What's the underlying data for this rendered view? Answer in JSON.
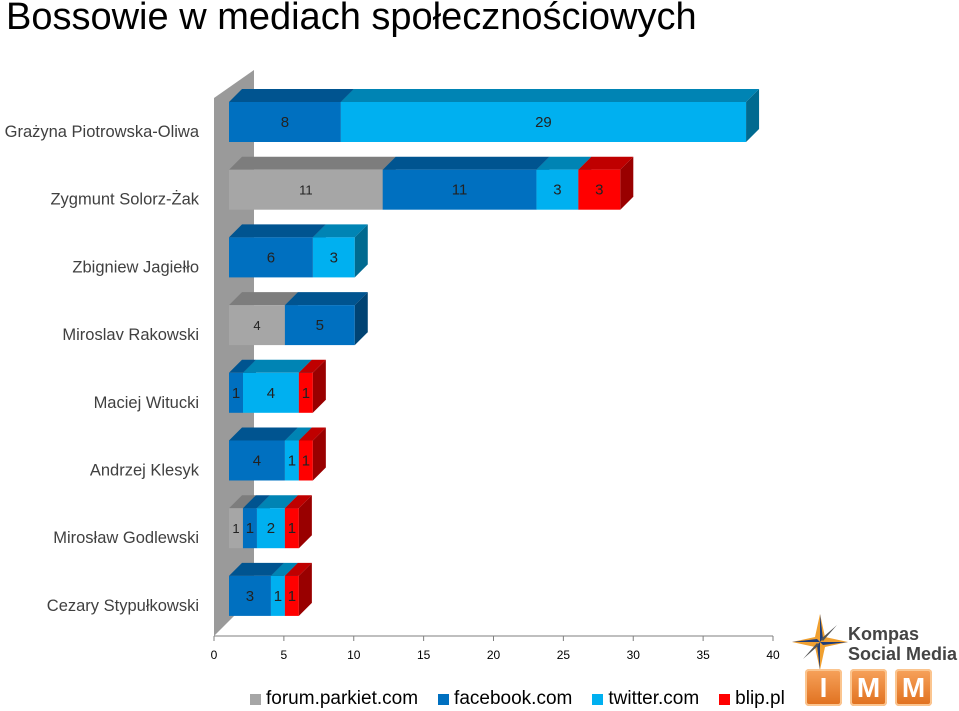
{
  "title": "Bossowie w mediach społecznościowych",
  "chart_data": {
    "type": "bar",
    "orientation": "horizontal",
    "stacked": true,
    "three_d": true,
    "title": "Bossowie w mediach społecznościowych",
    "categories": [
      "Grażyna Piotrowska-Oliwa",
      "Zygmunt Solorz-Żak",
      "Zbigniew Jagiełło",
      "Miroslav Rakowski",
      "Maciej Witucki",
      "Andrzej Klesyk",
      "Mirosław Godlewski",
      "Cezary Stypułkowski"
    ],
    "series": [
      {
        "name": "forum.parkiet.com",
        "color": "#A6A6A6",
        "values": [
          0,
          11,
          0,
          4,
          0,
          0,
          1,
          0
        ]
      },
      {
        "name": "facebook.com",
        "color": "#0070C0",
        "values": [
          8,
          11,
          6,
          5,
          1,
          4,
          1,
          3
        ]
      },
      {
        "name": "twitter.com",
        "color": "#00B0F0",
        "values": [
          29,
          3,
          3,
          0,
          4,
          1,
          2,
          1
        ]
      },
      {
        "name": "blip.pl",
        "color": "#FF0000",
        "values": [
          0,
          3,
          0,
          0,
          1,
          1,
          1,
          1
        ]
      }
    ],
    "data_labels": [
      [
        "",
        "8",
        "29",
        ""
      ],
      [
        "11",
        "11",
        "3",
        "3"
      ],
      [
        "",
        "6",
        "3",
        ""
      ],
      [
        "4",
        "5",
        "",
        ""
      ],
      [
        "",
        "1",
        "4",
        "1"
      ],
      [
        "",
        "4",
        "1",
        "1"
      ],
      [
        "1",
        "1",
        "2",
        "1"
      ],
      [
        "",
        "3",
        "1",
        "1"
      ]
    ],
    "xlim": [
      0,
      40
    ],
    "x_ticks": [
      0,
      5,
      10,
      15,
      20,
      25,
      30,
      35,
      40
    ],
    "legend_position": "bottom",
    "grid": false
  },
  "logo": {
    "brand_line1": "Kompas",
    "brand_line2": "Social Media",
    "letters": [
      "I",
      "M",
      "M"
    ]
  }
}
